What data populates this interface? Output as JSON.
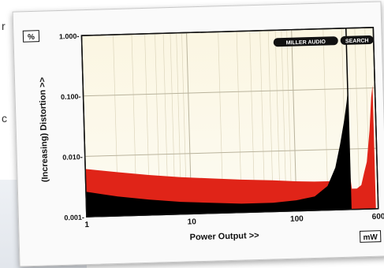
{
  "background": {
    "left_letters": [
      "r",
      "c"
    ]
  },
  "chart_data": {
    "type": "area",
    "title": "",
    "unit_y": "%",
    "unit_x": "mW",
    "xlabel": "Power Output >>",
    "ylabel": "(Increasing) Distortion >>",
    "x_scale": "log",
    "y_scale": "log",
    "xlim": [
      1,
      600
    ],
    "ylim": [
      0.001,
      1.0
    ],
    "x_ticks": [
      {
        "value": 1,
        "label": "1"
      },
      {
        "value": 10,
        "label": "10"
      },
      {
        "value": 100,
        "label": "100"
      },
      {
        "value": 600,
        "label": "600"
      }
    ],
    "y_ticks": [
      {
        "value": 0.001,
        "label": "0.001-"
      },
      {
        "value": 0.01,
        "label": "0.010-"
      },
      {
        "value": 0.1,
        "label": "0.100-"
      },
      {
        "value": 1.0,
        "label": "1.000-"
      }
    ],
    "grid": true,
    "logo_text": {
      "left": "MILLER AUDIO",
      "right": "SEARCH"
    },
    "clip_marker": 330,
    "series": [
      {
        "color": "#e02418",
        "x": [
          1,
          2,
          4,
          8,
          15,
          30,
          60,
          100,
          150,
          200,
          250,
          300,
          320,
          330,
          340,
          380,
          420,
          450,
          480,
          520,
          550,
          570
        ],
        "y": [
          0.0062,
          0.0053,
          0.0046,
          0.0041,
          0.0038,
          0.0035,
          0.0033,
          0.0031,
          0.003,
          0.003,
          0.003,
          0.0032,
          0.0035,
          0.0038,
          0.0022,
          0.0022,
          0.0025,
          0.004,
          0.006,
          0.02,
          0.07,
          0.11
        ]
      },
      {
        "color": "#000000",
        "x": [
          1,
          2,
          4,
          8,
          15,
          30,
          60,
          100,
          150,
          200,
          240,
          270,
          300,
          320,
          330
        ],
        "y": [
          0.0026,
          0.0021,
          0.0018,
          0.0016,
          0.0015,
          0.0014,
          0.0014,
          0.0015,
          0.0017,
          0.0025,
          0.005,
          0.012,
          0.03,
          0.06,
          0.09
        ]
      }
    ]
  }
}
